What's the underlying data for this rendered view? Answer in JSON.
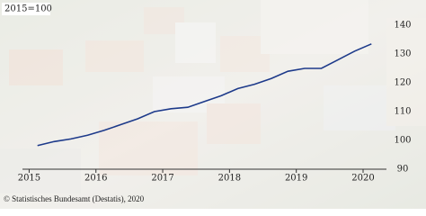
{
  "chart_data": {
    "type": "line",
    "base_label": "2015=100",
    "source": "© Statistisches Bundesamt (Destatis), 2020",
    "x": [
      2015.125,
      2015.375,
      2015.625,
      2015.875,
      2016.125,
      2016.375,
      2016.625,
      2016.875,
      2017.125,
      2017.375,
      2017.625,
      2017.875,
      2018.125,
      2018.375,
      2018.625,
      2018.875,
      2019.125,
      2019.375,
      2019.625,
      2019.875,
      2020.125
    ],
    "series": [
      {
        "color": "#1d3a8a",
        "values": [
          98.2,
          99.6,
          100.5,
          101.8,
          103.5,
          105.5,
          107.5,
          110.0,
          111.0,
          111.5,
          113.5,
          115.5,
          118.0,
          119.5,
          121.5,
          124.0,
          125.0,
          125.0,
          128.0,
          131.0,
          133.5
        ]
      }
    ],
    "xlim": [
      2014.9,
      2020.35
    ],
    "xticks": [
      2015,
      2016,
      2017,
      2018,
      2019,
      2020
    ],
    "ylim": [
      90,
      140
    ],
    "yticks": [
      90,
      100,
      110,
      120,
      130,
      140
    ],
    "y_axis_side": "right"
  }
}
